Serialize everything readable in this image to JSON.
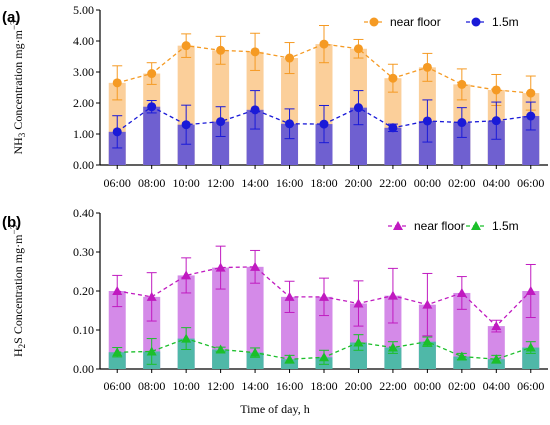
{
  "colors": {
    "near_floor_a": "#f59a23",
    "near_floor_a_fill": "#fbcf9a",
    "m15_a": "#1a1ad8",
    "m15_a_fill": "#6f60d0",
    "near_floor_b": "#c01ac0",
    "near_floor_b_fill": "#d48ae8",
    "m15_b": "#1bbf2a",
    "m15_b_fill": "#4fb8a8"
  },
  "xlabel": "Time of day, h",
  "chart_data": [
    {
      "type": "bar",
      "panel_label": "(a)",
      "ylabel_parts": [
        "NH",
        "3",
        " Concentration mg·m",
        "−3"
      ],
      "ylim": [
        0,
        5
      ],
      "yticks": [
        "0.00",
        "1.00",
        "2.00",
        "3.00",
        "4.00",
        "5.00"
      ],
      "categories": [
        "06:00",
        "08:00",
        "10:00",
        "12:00",
        "14:00",
        "16:00",
        "18:00",
        "20:00",
        "22:00",
        "00:00",
        "02:00",
        "04:00",
        "06:00"
      ],
      "legend_position": "top-right",
      "series": [
        {
          "name": "near floor",
          "values": [
            2.65,
            2.95,
            3.85,
            3.7,
            3.65,
            3.45,
            3.9,
            3.75,
            2.8,
            3.15,
            2.6,
            2.42,
            2.32
          ],
          "errors": [
            0.55,
            0.35,
            0.38,
            0.45,
            0.6,
            0.5,
            0.6,
            0.3,
            0.45,
            0.45,
            0.5,
            0.5,
            0.55
          ]
        },
        {
          "name": "1.5m",
          "values": [
            1.07,
            1.88,
            1.3,
            1.4,
            1.78,
            1.33,
            1.32,
            1.85,
            1.2,
            1.42,
            1.37,
            1.43,
            1.58
          ],
          "errors": [
            0.52,
            0.2,
            0.63,
            0.48,
            0.62,
            0.48,
            0.6,
            0.55,
            0.12,
            0.68,
            0.48,
            0.6,
            0.45
          ]
        }
      ]
    },
    {
      "type": "bar",
      "panel_label": "(b)",
      "ylabel_parts": [
        "H",
        "2",
        "S Concentration mg·m",
        "−3"
      ],
      "ylim": [
        0,
        0.4
      ],
      "yticks": [
        "0.00",
        "0.10",
        "0.20",
        "0.30",
        "0.40"
      ],
      "categories": [
        "06:00",
        "08:00",
        "10:00",
        "12:00",
        "14:00",
        "16:00",
        "18:00",
        "20:00",
        "22:00",
        "00:00",
        "02:00",
        "04:00",
        "06:00"
      ],
      "legend_position": "top-right",
      "series": [
        {
          "name": "near floor",
          "values": [
            0.2,
            0.185,
            0.24,
            0.26,
            0.262,
            0.185,
            0.185,
            0.168,
            0.188,
            0.165,
            0.195,
            0.11,
            0.2
          ],
          "errors": [
            0.04,
            0.062,
            0.045,
            0.055,
            0.042,
            0.04,
            0.048,
            0.058,
            0.07,
            0.08,
            0.042,
            0.015,
            0.068
          ]
        },
        {
          "name": "1.5m",
          "values": [
            0.043,
            0.045,
            0.078,
            0.05,
            0.042,
            0.025,
            0.03,
            0.068,
            0.055,
            0.07,
            0.032,
            0.025,
            0.055
          ],
          "errors": [
            0.012,
            0.033,
            0.028,
            0.006,
            0.012,
            0.01,
            0.018,
            0.02,
            0.015,
            0.012,
            0.008,
            0.01,
            0.015
          ]
        }
      ]
    }
  ]
}
